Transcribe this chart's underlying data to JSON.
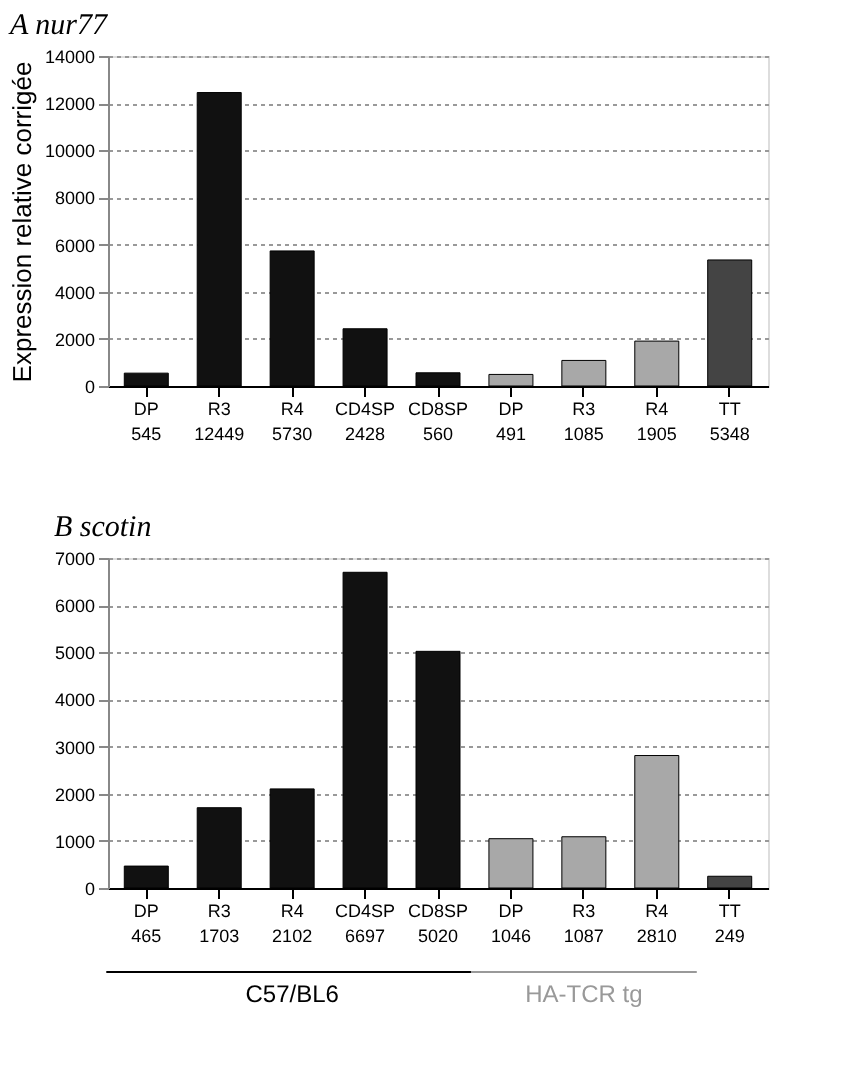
{
  "chart_data": [
    {
      "type": "bar",
      "title": "A nur77",
      "ylabel": "Expression relative corrigée",
      "categories": [
        "DP",
        "R3",
        "R4",
        "CD4SP",
        "CD8SP",
        "DP",
        "R3",
        "R4",
        "TT"
      ],
      "values": [
        545,
        12449,
        5730,
        2428,
        560,
        491,
        1085,
        1905,
        5348
      ],
      "colors": [
        "#111111",
        "#111111",
        "#111111",
        "#111111",
        "#111111",
        "#a8a8a8",
        "#a8a8a8",
        "#a8a8a8",
        "#444444"
      ],
      "ylim": [
        0,
        14000
      ],
      "yticks": [
        0,
        2000,
        4000,
        6000,
        8000,
        10000,
        12000,
        14000
      ],
      "grid": "y",
      "data_labels": true
    },
    {
      "type": "bar",
      "title": "B scotin",
      "categories": [
        "DP",
        "R3",
        "R4",
        "CD4SP",
        "CD8SP",
        "DP",
        "R3",
        "R4",
        "TT"
      ],
      "values": [
        465,
        1703,
        2102,
        6697,
        5020,
        1046,
        1087,
        2810,
        249
      ],
      "colors": [
        "#111111",
        "#111111",
        "#111111",
        "#111111",
        "#111111",
        "#a8a8a8",
        "#a8a8a8",
        "#a8a8a8",
        "#444444"
      ],
      "ylim": [
        0,
        7000
      ],
      "yticks": [
        0,
        1000,
        2000,
        3000,
        4000,
        5000,
        6000,
        7000
      ],
      "grid": "y",
      "data_labels": true,
      "annotations": [
        "C57/BL6",
        "HA-TCR tg"
      ]
    }
  ]
}
